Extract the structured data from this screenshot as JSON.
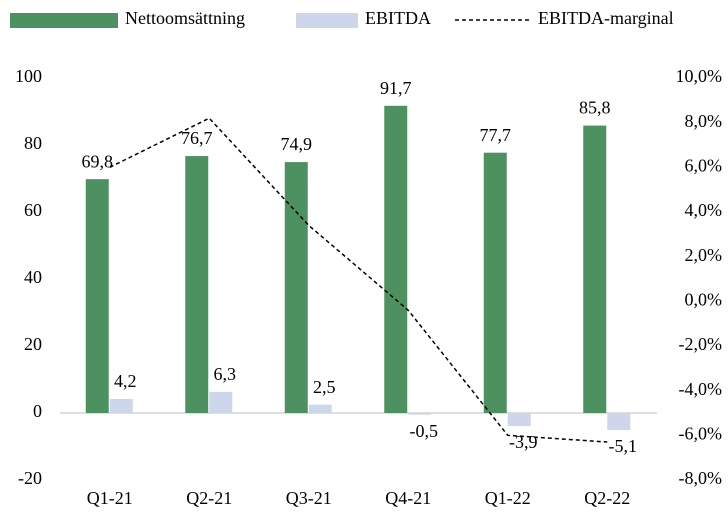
{
  "chart_data": {
    "type": "bar",
    "categories": [
      "Q1-21",
      "Q2-21",
      "Q3-21",
      "Q4-21",
      "Q1-22",
      "Q2-22"
    ],
    "series": [
      {
        "name": "Nettoomsättning",
        "color": "#4e9160",
        "values": [
          69.8,
          76.7,
          74.9,
          91.7,
          77.7,
          85.8
        ],
        "value_labels": [
          "69,8",
          "76,7",
          "74,9",
          "91,7",
          "77,7",
          "85,8"
        ]
      },
      {
        "name": "EBITDA",
        "color": "#cdd6ea",
        "values": [
          4.2,
          6.3,
          2.5,
          -0.5,
          -3.9,
          -5.1
        ],
        "value_labels": [
          "4,2",
          "6,3",
          "2,5",
          "-0,5",
          "-3,9",
          "-5,1"
        ]
      },
      {
        "name": "EBITDA-marginal",
        "type": "line",
        "color": "#000000",
        "axis": "y2",
        "values": [
          6.0,
          8.2,
          3.4,
          -0.4,
          -6.0,
          -6.3
        ]
      }
    ],
    "ylim": [
      -20,
      100
    ],
    "yticks": [
      -20,
      0,
      20,
      40,
      60,
      80,
      100
    ],
    "y2lim": [
      -8,
      10
    ],
    "y2ticks": [
      {
        "value": -8,
        "label": "-8,0%"
      },
      {
        "value": -6,
        "label": "-6,0%"
      },
      {
        "value": -4,
        "label": "-4,0%"
      },
      {
        "value": -2,
        "label": "-2,0%"
      },
      {
        "value": 0,
        "label": "0,0%"
      },
      {
        "value": 2,
        "label": "2,0%"
      },
      {
        "value": 4,
        "label": "4,0%"
      },
      {
        "value": 6,
        "label": "6,0%"
      },
      {
        "value": 8,
        "label": "8,0%"
      },
      {
        "value": 10,
        "label": "10,0%"
      }
    ],
    "legend": "top"
  }
}
